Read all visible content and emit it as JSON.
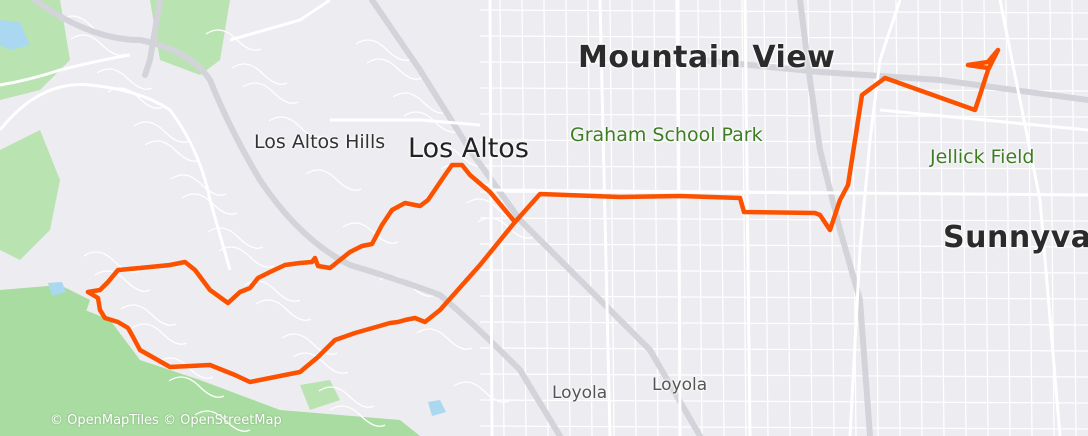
{
  "map": {
    "labels": {
      "mountain_view": "Mountain View",
      "los_altos": "Los Altos",
      "los_altos_hills": "Los Altos Hills",
      "graham_school_park": "Graham School Park",
      "jellick_field": "Jellick Field",
      "sunnyvale": "Sunnyva",
      "loyola_1": "Loyola",
      "loyola_2": "Loyola"
    },
    "attribution": "© OpenMapTiles © OpenStreetMap",
    "colors": {
      "background": "#ececf1",
      "park": "#a8dca0",
      "water": "#a9d8f0",
      "road": "#ffffff",
      "highway": "#d3d3da",
      "route": "#fc5200"
    }
  }
}
